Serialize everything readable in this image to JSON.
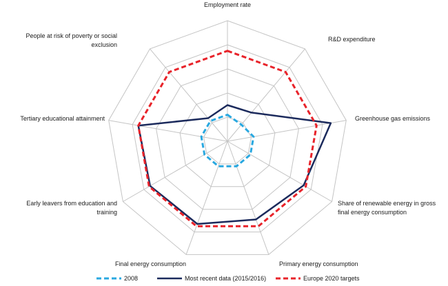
{
  "chart_data": {
    "type": "radar",
    "axes": [
      "Employment rate",
      "R&D expenditure",
      "Greenhouse gas emissions",
      "Share of renewable energy in gross final energy consumption",
      "Primary energy consumption",
      "Final energy consumption",
      "Early leavers from education and training",
      "Tertiary educational attainment",
      "People at risk of poverty or social exclusion"
    ],
    "axis_label_lines": [
      [
        "Employment rate"
      ],
      [
        "R&D expenditure"
      ],
      [
        "Greenhouse gas emissions"
      ],
      [
        "Share of renewable energy in gross",
        "final energy consumption"
      ],
      [
        "Primary energy consumption"
      ],
      [
        "Final energy consumption"
      ],
      [
        "Early leavers from education and",
        "training"
      ],
      [
        "Tertiary educational attainment"
      ],
      [
        "People at risk of poverty or social",
        "exclusion"
      ]
    ],
    "scale": {
      "min": 0,
      "max": 1,
      "rings": 5
    },
    "grid": true,
    "legend_position": "bottom",
    "series": [
      {
        "name": "2008",
        "color": "#29a8e0",
        "dash": "dashed",
        "values": [
          0.22,
          0.18,
          0.22,
          0.22,
          0.22,
          0.22,
          0.22,
          0.22,
          0.22
        ]
      },
      {
        "name": "Most recent data (2015/2016)",
        "color": "#1b2a5c",
        "dash": "solid",
        "values": [
          0.3,
          0.31,
          0.87,
          0.73,
          0.69,
          0.73,
          0.74,
          0.75,
          0.25
        ]
      },
      {
        "name": "Europe 2020 targets",
        "color": "#e8232a",
        "dash": "dashed",
        "values": [
          0.75,
          0.75,
          0.75,
          0.75,
          0.75,
          0.75,
          0.75,
          0.75,
          0.75
        ]
      }
    ]
  }
}
